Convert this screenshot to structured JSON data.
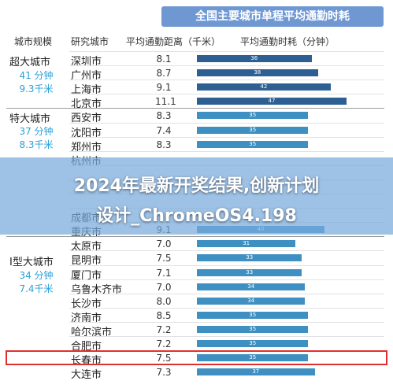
{
  "title": "全国主要城市单程平均通勤时耗",
  "headers": {
    "tier": "城市规模",
    "city": "研究城市",
    "distance": "平均通勤距离（千米）",
    "time": "平均通勤时耗（分钟）"
  },
  "groups": [
    {
      "name": "超大城市",
      "note1": "41 分钟",
      "note2": "9.3千米"
    },
    {
      "name": "特大城市",
      "note1": "37 分钟",
      "note2": "8.3千米"
    },
    {
      "name": "Ⅰ型大城市",
      "note1": "34 分钟",
      "note2": "7.4千米"
    }
  ],
  "overlay": {
    "line1": "2024年最新开奖结果,创新计划",
    "line2": "设计_ChromeOS4.198"
  },
  "colors": {
    "super_large": "#2d5f93",
    "large": "#3e8fc2",
    "highlight": "#e0302d",
    "title_bg": "#6f98d3"
  },
  "chart_data": {
    "type": "bar",
    "orientation": "horizontal",
    "title": "全国主要城市单程平均通勤时耗",
    "xlabel": "平均通勤时耗（分钟）",
    "ylabel": "研究城市",
    "xlim": [
      0,
      60
    ],
    "categories": [
      "深圳市",
      "广州市",
      "上海市",
      "北京市",
      "西安市",
      "沈阳市",
      "郑州市",
      "杭州市",
      "",
      "",
      "",
      "成都市",
      "重庆市",
      "太原市",
      "昆明市",
      "厦门市",
      "乌鲁木齐市",
      "长沙市",
      "济南市",
      "哈尔滨市",
      "合肥市",
      "长春市",
      "大连市"
    ],
    "tiers": [
      "超大城市",
      "超大城市",
      "超大城市",
      "超大城市",
      "特大城市",
      "特大城市",
      "特大城市",
      "特大城市",
      "特大城市",
      "特大城市",
      "特大城市",
      "特大城市",
      "特大城市",
      "Ⅰ型大城市",
      "Ⅰ型大城市",
      "Ⅰ型大城市",
      "Ⅰ型大城市",
      "Ⅰ型大城市",
      "Ⅰ型大城市",
      "Ⅰ型大城市",
      "Ⅰ型大城市",
      "Ⅰ型大城市",
      "Ⅰ型大城市"
    ],
    "distance_km": [
      8.1,
      8.7,
      9.1,
      11.1,
      8.3,
      7.4,
      8.3,
      "",
      "",
      "",
      "",
      "",
      9.1,
      7.0,
      7.5,
      7.1,
      7.0,
      8.0,
      8.5,
      7.2,
      7.2,
      7.5,
      7.3
    ],
    "values": [
      36,
      38,
      42,
      47,
      35,
      35,
      35,
      "",
      "",
      "",
      "",
      "",
      40,
      31,
      33,
      33,
      34,
      34,
      35,
      35,
      35,
      35,
      37
    ],
    "highlighted_category": "合肥市"
  }
}
